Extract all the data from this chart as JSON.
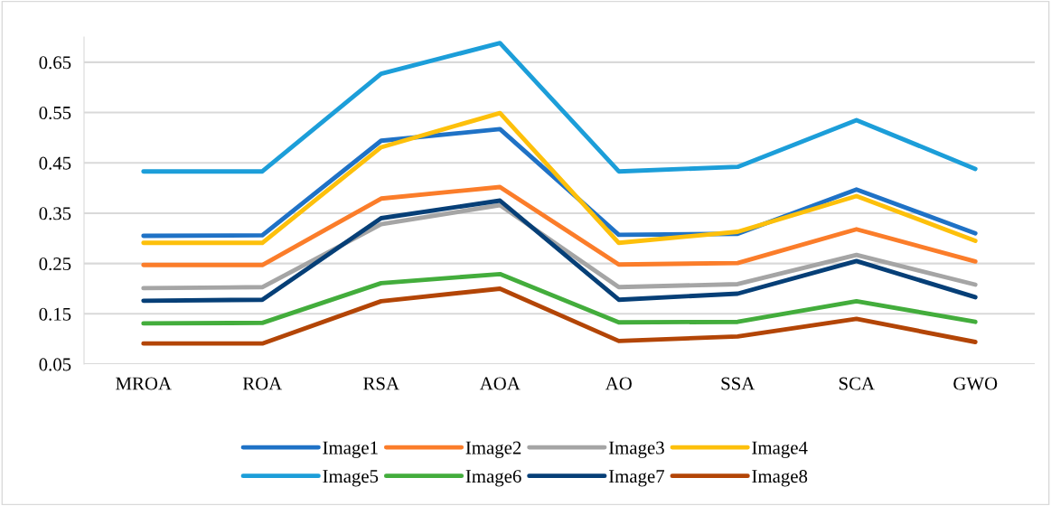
{
  "chart_data": {
    "type": "line",
    "categories": [
      "MROA",
      "ROA",
      "RSA",
      "AOA",
      "AO",
      "SSA",
      "SCA",
      "GWO"
    ],
    "ylim": [
      0.05,
      0.7
    ],
    "yticks": [
      0.05,
      0.15,
      0.25,
      0.35,
      0.45,
      0.55,
      0.65
    ],
    "grid": "y",
    "legend": "bottom",
    "marker": "none",
    "line_style": "solid",
    "series": [
      {
        "name": "Image1",
        "color": "#1f72c6",
        "values": [
          0.305,
          0.306,
          0.494,
          0.517,
          0.307,
          0.309,
          0.397,
          0.31
        ]
      },
      {
        "name": "Image2",
        "color": "#fb7d2a",
        "values": [
          0.247,
          0.247,
          0.379,
          0.402,
          0.248,
          0.251,
          0.318,
          0.254
        ]
      },
      {
        "name": "Image3",
        "color": "#a5a5a5",
        "values": [
          0.201,
          0.203,
          0.328,
          0.366,
          0.203,
          0.209,
          0.267,
          0.208
        ]
      },
      {
        "name": "Image4",
        "color": "#fdc00b",
        "values": [
          0.291,
          0.291,
          0.481,
          0.549,
          0.291,
          0.313,
          0.384,
          0.295
        ]
      },
      {
        "name": "Image5",
        "color": "#1c9ed9",
        "values": [
          0.433,
          0.433,
          0.627,
          0.688,
          0.433,
          0.442,
          0.535,
          0.438
        ]
      },
      {
        "name": "Image6",
        "color": "#43ad3c",
        "values": [
          0.131,
          0.132,
          0.211,
          0.229,
          0.133,
          0.134,
          0.175,
          0.134
        ]
      },
      {
        "name": "Image7",
        "color": "#063f77",
        "values": [
          0.176,
          0.178,
          0.34,
          0.375,
          0.178,
          0.19,
          0.255,
          0.183
        ]
      },
      {
        "name": "Image8",
        "color": "#b34506",
        "values": [
          0.091,
          0.091,
          0.175,
          0.2,
          0.096,
          0.105,
          0.14,
          0.094
        ]
      }
    ]
  }
}
